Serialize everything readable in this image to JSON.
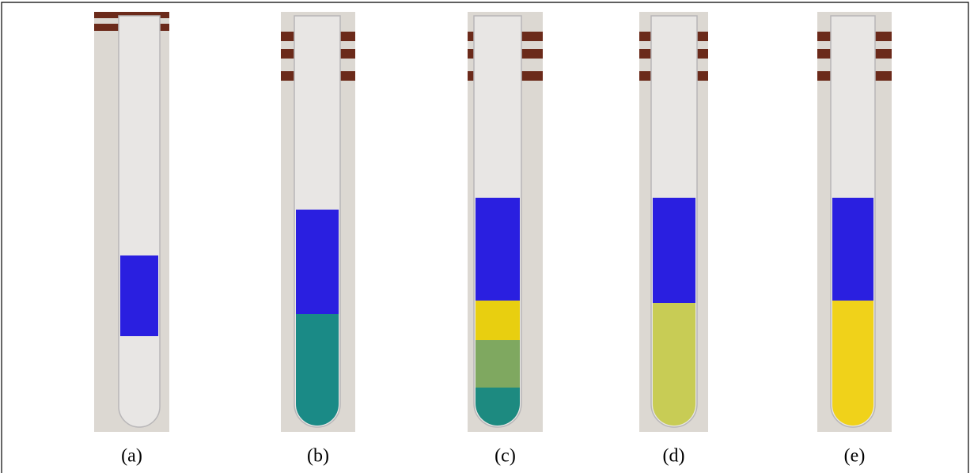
{
  "figure": {
    "captions": [
      "(a)",
      "(b)",
      "(c)",
      "(d)",
      "(e)"
    ]
  }
}
